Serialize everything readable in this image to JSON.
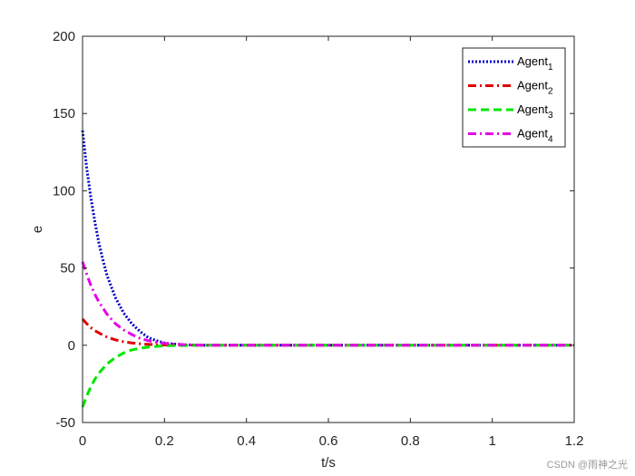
{
  "chart_data": {
    "type": "line",
    "xlabel": "t/s",
    "ylabel": "e",
    "xlim": [
      0,
      1.2
    ],
    "ylim": [
      -50,
      200
    ],
    "xticks": [
      0,
      0.2,
      0.4,
      0.6,
      0.8,
      1,
      1.2
    ],
    "xtick_labels": [
      "0",
      "0.2",
      "0.4",
      "0.6",
      "0.8",
      "1",
      "1.2"
    ],
    "yticks": [
      -50,
      0,
      50,
      100,
      150,
      200
    ],
    "ytick_labels": [
      "-50",
      "0",
      "50",
      "100",
      "150",
      "200"
    ],
    "grid": false,
    "legend_position": "top-right",
    "series": [
      {
        "name": "Agent",
        "subscript": "1",
        "color": "#0000c8",
        "style": "dotted",
        "x": [
          0,
          0.01,
          0.02,
          0.03,
          0.04,
          0.05,
          0.06,
          0.08,
          0.1,
          0.12,
          0.14,
          0.16,
          0.18,
          0.2,
          0.22,
          0.25,
          0.3,
          0.4,
          0.6,
          0.8,
          1.0,
          1.2
        ],
        "y": [
          139,
          115,
          96,
          80,
          66,
          55,
          45,
          31,
          21,
          14,
          9,
          5,
          3,
          1.5,
          0.8,
          0.3,
          0,
          0,
          0,
          0,
          0,
          0
        ]
      },
      {
        "name": "Agent",
        "subscript": "2",
        "color": "#e00000",
        "style": "dashdot",
        "x": [
          0,
          0.01,
          0.02,
          0.03,
          0.04,
          0.05,
          0.06,
          0.08,
          0.1,
          0.12,
          0.15,
          0.2,
          0.3,
          0.4,
          0.6,
          0.8,
          1.0,
          1.2
        ],
        "y": [
          17,
          14,
          11.5,
          9.5,
          8,
          6.5,
          5.3,
          3.5,
          2.3,
          1.5,
          0.7,
          0.2,
          0,
          0,
          0,
          0,
          0,
          0
        ]
      },
      {
        "name": "Agent",
        "subscript": "3",
        "color": "#00e600",
        "style": "dashed",
        "x": [
          0,
          0.01,
          0.02,
          0.03,
          0.04,
          0.05,
          0.06,
          0.08,
          0.1,
          0.12,
          0.14,
          0.16,
          0.2,
          0.3,
          0.4,
          0.6,
          0.8,
          1.0,
          1.2
        ],
        "y": [
          -40,
          -33,
          -27,
          -22,
          -18,
          -15,
          -12,
          -8,
          -5,
          -3,
          -2,
          -1.2,
          -0.3,
          0,
          0,
          0,
          0,
          0,
          0
        ]
      },
      {
        "name": "Agent",
        "subscript": "4",
        "color": "#e600e6",
        "style": "dashdot",
        "x": [
          0,
          0.01,
          0.02,
          0.03,
          0.04,
          0.05,
          0.06,
          0.08,
          0.1,
          0.12,
          0.14,
          0.16,
          0.18,
          0.2,
          0.25,
          0.3,
          0.4,
          0.6,
          0.8,
          1.0,
          1.2
        ],
        "y": [
          54,
          46,
          39,
          33,
          28,
          24,
          20,
          14,
          10,
          7,
          4.5,
          3,
          2,
          1.2,
          0.3,
          0,
          0,
          0,
          0,
          0,
          0
        ]
      }
    ]
  },
  "watermark": "CSDN @雨神之光"
}
